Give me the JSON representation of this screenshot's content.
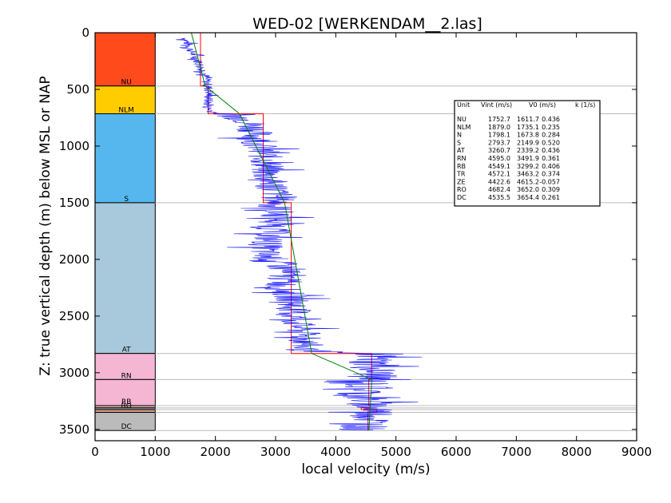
{
  "chart_data": {
    "type": "line",
    "title": "WED-02 [WERKENDAM__2.las]",
    "xlabel": "local velocity (m/s)",
    "ylabel": "Z: true vertical depth (m) below MSL or NAP",
    "xlim": [
      0,
      9000
    ],
    "ylim": [
      3600,
      0
    ],
    "x_ticks": [
      "0",
      "1000",
      "2000",
      "3000",
      "4000",
      "5000",
      "6000",
      "7000",
      "8000",
      "9000"
    ],
    "y_ticks": [
      "0",
      "500",
      "1000",
      "1500",
      "2000",
      "2500",
      "3000",
      "3500"
    ],
    "y_inverted": true,
    "grid": "horizontal lines at formation boundaries",
    "colors": {
      "log": "#0000ff",
      "interval_velocity": "#ff0000",
      "trend": "#008000",
      "boundary": "#bbbbbb"
    },
    "formations": [
      {
        "name": "NU",
        "top": 0,
        "base": 470,
        "color": "#ff4a1c"
      },
      {
        "name": "NLM",
        "top": 470,
        "base": 715,
        "color": "#ffcc00"
      },
      {
        "name": "N",
        "top": 715,
        "base": 715,
        "color": "#fff2a0"
      },
      {
        "name": "S",
        "top": 715,
        "base": 1500,
        "color": "#55b7ed"
      },
      {
        "name": "AT",
        "top": 1500,
        "base": 2830,
        "color": "#a8c8dc"
      },
      {
        "name": "RN",
        "top": 2830,
        "base": 3060,
        "color": "#f4b6d3"
      },
      {
        "name": "RB",
        "top": 3060,
        "base": 3290,
        "color": "#f4b6d3"
      },
      {
        "name": "TR",
        "top": 3290,
        "base": 3310,
        "color": "#d7b7a9"
      },
      {
        "name": "ZE",
        "top": 3310,
        "base": 3325,
        "color": "#b7a7c7"
      },
      {
        "name": "RO",
        "top": 3325,
        "base": 3350,
        "color": "#cf9b82"
      },
      {
        "name": "DC",
        "top": 3350,
        "base": 3510,
        "color": "#bbbbbb"
      }
    ],
    "boundary_labels": [
      {
        "text": "NU",
        "depth": 470
      },
      {
        "text": "NLM",
        "depth": 715
      },
      {
        "text": "S",
        "depth": 1500
      },
      {
        "text": "AT",
        "depth": 2830
      },
      {
        "text": "RN",
        "depth": 3060
      },
      {
        "text": "RB",
        "depth": 3290
      },
      {
        "text": "RO",
        "depth": 3325
      },
      {
        "text": "DC",
        "depth": 3510
      }
    ],
    "table": {
      "headers": [
        "Unit",
        "Vint (m/s)",
        "V0 (m/s)",
        "k (1/s)"
      ],
      "rows": [
        {
          "unit": "NU",
          "vint": 1752.7,
          "v0": 1611.7,
          "k": 0.436,
          "top": 0,
          "base": 470
        },
        {
          "unit": "NLM",
          "vint": 1879.0,
          "v0": 1735.1,
          "k": 0.235,
          "top": 470,
          "base": 715
        },
        {
          "unit": "N",
          "vint": 1798.1,
          "v0": 1673.8,
          "k": 0.284,
          "top": 715,
          "base": 715
        },
        {
          "unit": "S",
          "vint": 2793.7,
          "v0": 2149.9,
          "k": 0.52,
          "top": 715,
          "base": 1500
        },
        {
          "unit": "AT",
          "vint": 3260.7,
          "v0": 2339.2,
          "k": 0.436,
          "top": 1500,
          "base": 2830
        },
        {
          "unit": "RN",
          "vint": 4595.0,
          "v0": 3491.9,
          "k": 0.361,
          "top": 2830,
          "base": 3060
        },
        {
          "unit": "RB",
          "vint": 4549.1,
          "v0": 3299.2,
          "k": 0.406,
          "top": 3060,
          "base": 3290
        },
        {
          "unit": "TR",
          "vint": 4572.1,
          "v0": 3463.2,
          "k": 0.374,
          "top": 3290,
          "base": 3310
        },
        {
          "unit": "ZE",
          "vint": 4422.6,
          "v0": 4615.2,
          "k": -0.057,
          "top": 3310,
          "base": 3325
        },
        {
          "unit": "RO",
          "vint": 4682.4,
          "v0": 3652.0,
          "k": 0.309,
          "top": 3325,
          "base": 3350
        },
        {
          "unit": "DC",
          "vint": 4535.5,
          "v0": 3654.4,
          "k": 0.261,
          "top": 3350,
          "base": 3510
        }
      ]
    },
    "velocity_log": [
      [
        1500,
        50
      ],
      [
        1560,
        120
      ],
      [
        1620,
        180
      ],
      [
        1700,
        240
      ],
      [
        1750,
        300
      ],
      [
        1820,
        360
      ],
      [
        1850,
        420
      ],
      [
        1880,
        480
      ],
      [
        1900,
        540
      ],
      [
        1880,
        600
      ],
      [
        1870,
        660
      ],
      [
        1950,
        700
      ],
      [
        2300,
        730
      ],
      [
        2550,
        780
      ],
      [
        2650,
        850
      ],
      [
        2700,
        950
      ],
      [
        2800,
        1050
      ],
      [
        2850,
        1150
      ],
      [
        2850,
        1250
      ],
      [
        2950,
        1350
      ],
      [
        3050,
        1450
      ],
      [
        3000,
        1550
      ],
      [
        3050,
        1650
      ],
      [
        2950,
        1750
      ],
      [
        2850,
        1850
      ],
      [
        2800,
        1950
      ],
      [
        3100,
        2050
      ],
      [
        3150,
        2150
      ],
      [
        3100,
        2250
      ],
      [
        3300,
        2350
      ],
      [
        3300,
        2450
      ],
      [
        3350,
        2550
      ],
      [
        3450,
        2650
      ],
      [
        3500,
        2750
      ],
      [
        3450,
        2800
      ],
      [
        4700,
        2850
      ],
      [
        4600,
        2900
      ],
      [
        4650,
        3000
      ],
      [
        4500,
        3100
      ],
      [
        4450,
        3200
      ],
      [
        4600,
        3300
      ],
      [
        4650,
        3400
      ],
      [
        4500,
        3470
      ],
      [
        4400,
        3510
      ]
    ],
    "trend_line": [
      [
        1600,
        0
      ],
      [
        1830,
        470
      ],
      [
        2400,
        715
      ],
      [
        3150,
        1500
      ],
      [
        3600,
        2830
      ],
      [
        4600,
        3060
      ],
      [
        4550,
        3510
      ]
    ]
  }
}
